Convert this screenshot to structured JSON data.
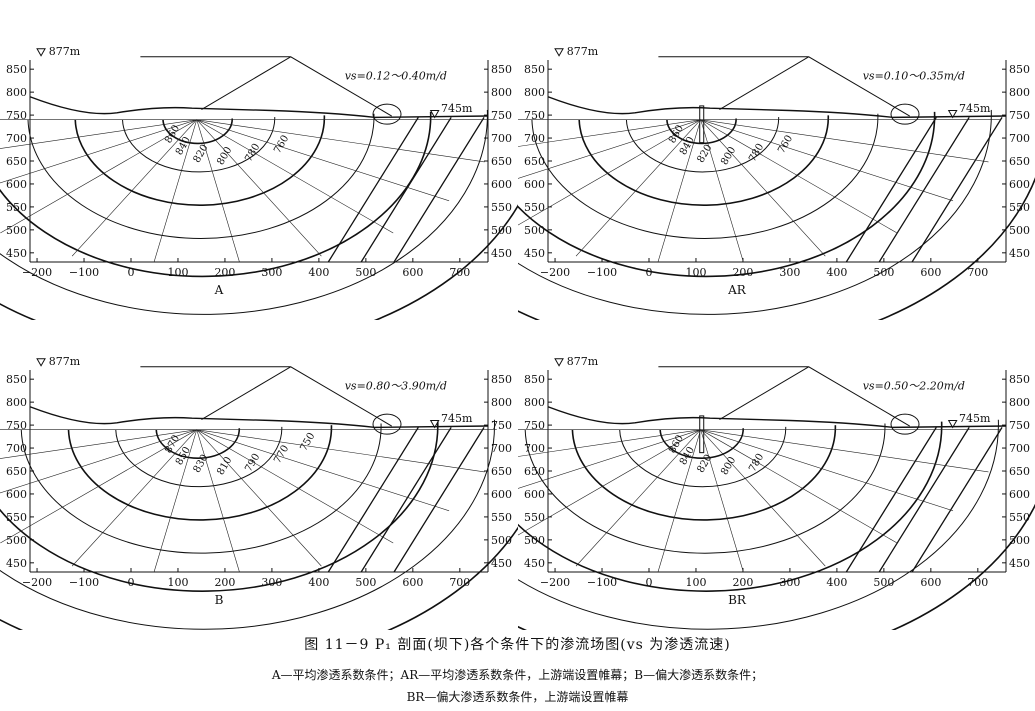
{
  "figure": {
    "caption": "图 11－9   P₁ 剖面(坝下)各个条件下的渗流场图(vs 为渗透流速)",
    "legend_line1": "A—平均渗透系数条件；AR—平均渗透系数条件，上游端设置帷幕；B—偏大渗透系数条件；",
    "legend_line2": "BR—偏大渗透系数条件，上游端设置帷幕"
  },
  "axes": {
    "x_ticks": [
      "−200",
      "−100",
      "0",
      "100",
      "200",
      "300",
      "400",
      "500",
      "600",
      "700"
    ],
    "y_ticks": [
      "850",
      "800",
      "750",
      "700",
      "650",
      "600",
      "550",
      "500",
      "450"
    ]
  },
  "panels": [
    {
      "id": "A",
      "label": "A",
      "upstream_level": "▽877m",
      "downstream_level": "▽745m",
      "velocity_text": "vs=0.12～0.40m/d",
      "contours": [
        "860",
        "840",
        "820",
        "800",
        "780",
        "760"
      ]
    },
    {
      "id": "AR",
      "label": "AR",
      "upstream_level": "▽877m",
      "downstream_level": "▽745m",
      "velocity_text": "vs=0.10～0.35m/d",
      "contours": [
        "860",
        "840",
        "820",
        "800",
        "780",
        "760"
      ]
    },
    {
      "id": "B",
      "label": "B",
      "upstream_level": "▽877m",
      "downstream_level": "▽745m",
      "velocity_text": "vs=0.80～3.90m/d",
      "contours": [
        "870",
        "850",
        "830",
        "810",
        "790",
        "770",
        "750"
      ]
    },
    {
      "id": "BR",
      "label": "BR",
      "upstream_level": "▽877m",
      "downstream_level": "▽745m",
      "velocity_text": "vs=0.50～2.20m/d",
      "contours": [
        "860",
        "840",
        "820",
        "800",
        "780"
      ]
    }
  ]
}
